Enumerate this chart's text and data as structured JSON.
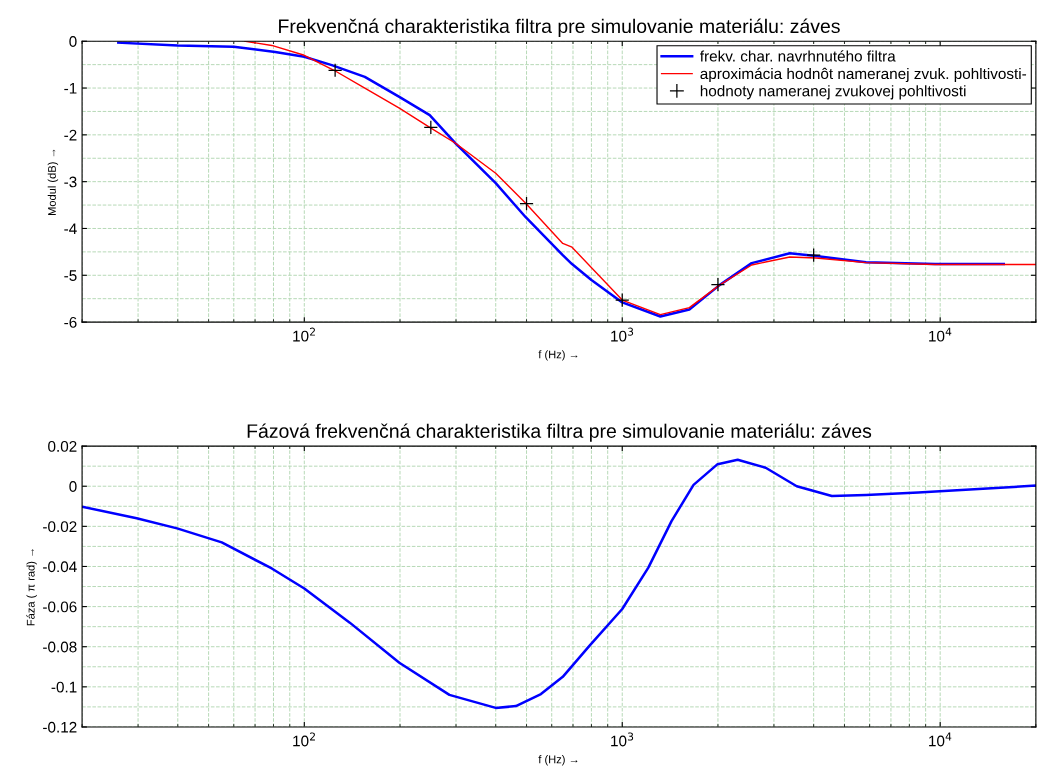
{
  "chart_data": [
    {
      "type": "line",
      "title": "Frekvenčná charakteristika filtra pre simulovanie materiálu: záves",
      "xlabel": "f (Hz) →",
      "ylabel": "Modul (dB) →",
      "log": "x",
      "xlim": [
        20,
        20000
      ],
      "xticks": [
        {
          "value": 100,
          "label": "10$^{2}$"
        },
        {
          "value": 1000,
          "label": "10$^{3}$"
        },
        {
          "value": 10000,
          "label": "10$^{4}$"
        }
      ],
      "ylim": [
        -6,
        0
      ],
      "yticks": [
        -6,
        -5,
        -4,
        -3,
        -2,
        -1,
        0
      ],
      "grid": true,
      "legend": "top right",
      "series": [
        {
          "name": "frekv. char. navrhnutého filtra",
          "color": "#0000ff",
          "type": "line",
          "x": [
            26,
            40,
            60,
            81,
            100,
            122,
            155,
            199,
            248,
            299,
            400,
            497,
            650,
            695,
            800,
            1000,
            1318,
            1626,
            2023,
            2553,
            3366,
            4064,
            5848,
            9640,
            15850
          ],
          "values": [
            -0.03,
            -0.09,
            -0.12,
            -0.23,
            -0.33,
            -0.51,
            -0.76,
            -1.19,
            -1.58,
            -2.18,
            -3.03,
            -3.76,
            -4.57,
            -4.76,
            -5.1,
            -5.58,
            -5.88,
            -5.73,
            -5.21,
            -4.74,
            -4.53,
            -4.59,
            -4.72,
            -4.76,
            -4.76
          ]
        },
        {
          "name": "aproximácia hodnôt nameranej zvuk. pohltivosti-",
          "color": "#ff0000",
          "type": "line",
          "x": [
            65,
            79,
            100,
            124,
            155,
            199,
            248,
            299,
            400,
            497,
            650,
            695,
            1000,
            1318,
            1626,
            2023,
            2553,
            3366,
            4064,
            5848,
            9640,
            20000
          ],
          "values": [
            0,
            -0.09,
            -0.3,
            -0.62,
            -1.0,
            -1.43,
            -1.84,
            -2.18,
            -2.82,
            -3.46,
            -4.32,
            -4.4,
            -5.53,
            -5.84,
            -5.69,
            -5.21,
            -4.78,
            -4.61,
            -4.63,
            -4.73,
            -4.77,
            -4.77
          ]
        },
        {
          "name": "hodnoty nameranej zvukovej pohltivosti",
          "color": "#000000",
          "type": "scatter",
          "marker": "cross",
          "x": [
            125,
            250,
            500,
            1000,
            2000,
            4000
          ],
          "values": [
            -0.62,
            -1.84,
            -3.47,
            -5.53,
            -5.2,
            -4.57
          ]
        }
      ]
    },
    {
      "type": "line",
      "title": "Fázová frekvenčná charakteristika filtra pre simulovanie materiálu: záves",
      "xlabel": "f (Hz) →",
      "ylabel": "Fáza ( π rad) →",
      "log": "x",
      "xlim": [
        20,
        20000
      ],
      "xticks": [
        {
          "value": 100,
          "label": "10$^{2}$"
        },
        {
          "value": 1000,
          "label": "10$^{3}$"
        },
        {
          "value": 10000,
          "label": "10$^{4}$"
        }
      ],
      "ylim": [
        -0.12,
        0.02
      ],
      "yticks": [
        {
          "value": -0.12,
          "label": "-0.12"
        },
        {
          "value": -0.1,
          "label": "-0.1"
        },
        {
          "value": -0.08,
          "label": "-0.08"
        },
        {
          "value": -0.06,
          "label": "-0.06"
        },
        {
          "value": -0.04,
          "label": "-0.04"
        },
        {
          "value": -0.02,
          "label": "-0.02"
        },
        0,
        0.02
      ],
      "grid": true,
      "series": [
        {
          "color": "#0000ff",
          "x": [
            20,
            29.7,
            39.8,
            55,
            79,
            100,
            139,
            199,
            286,
            400,
            463,
            555,
            650,
            787,
            1000,
            1208,
            1429,
            1676,
            1995,
            2307,
            2826,
            3539,
            4563,
            5848,
            8530,
            14070,
            20000
          ],
          "values": [
            -0.0102,
            -0.016,
            -0.021,
            -0.028,
            -0.041,
            -0.051,
            -0.068,
            -0.088,
            -0.104,
            -0.1105,
            -0.1096,
            -0.1036,
            -0.095,
            -0.0797,
            -0.0612,
            -0.0406,
            -0.0174,
            0.0007,
            0.011,
            0.0132,
            0.0092,
            0.0,
            -0.0049,
            -0.0044,
            -0.0031,
            -0.0011,
            0.0003
          ]
        }
      ]
    }
  ]
}
